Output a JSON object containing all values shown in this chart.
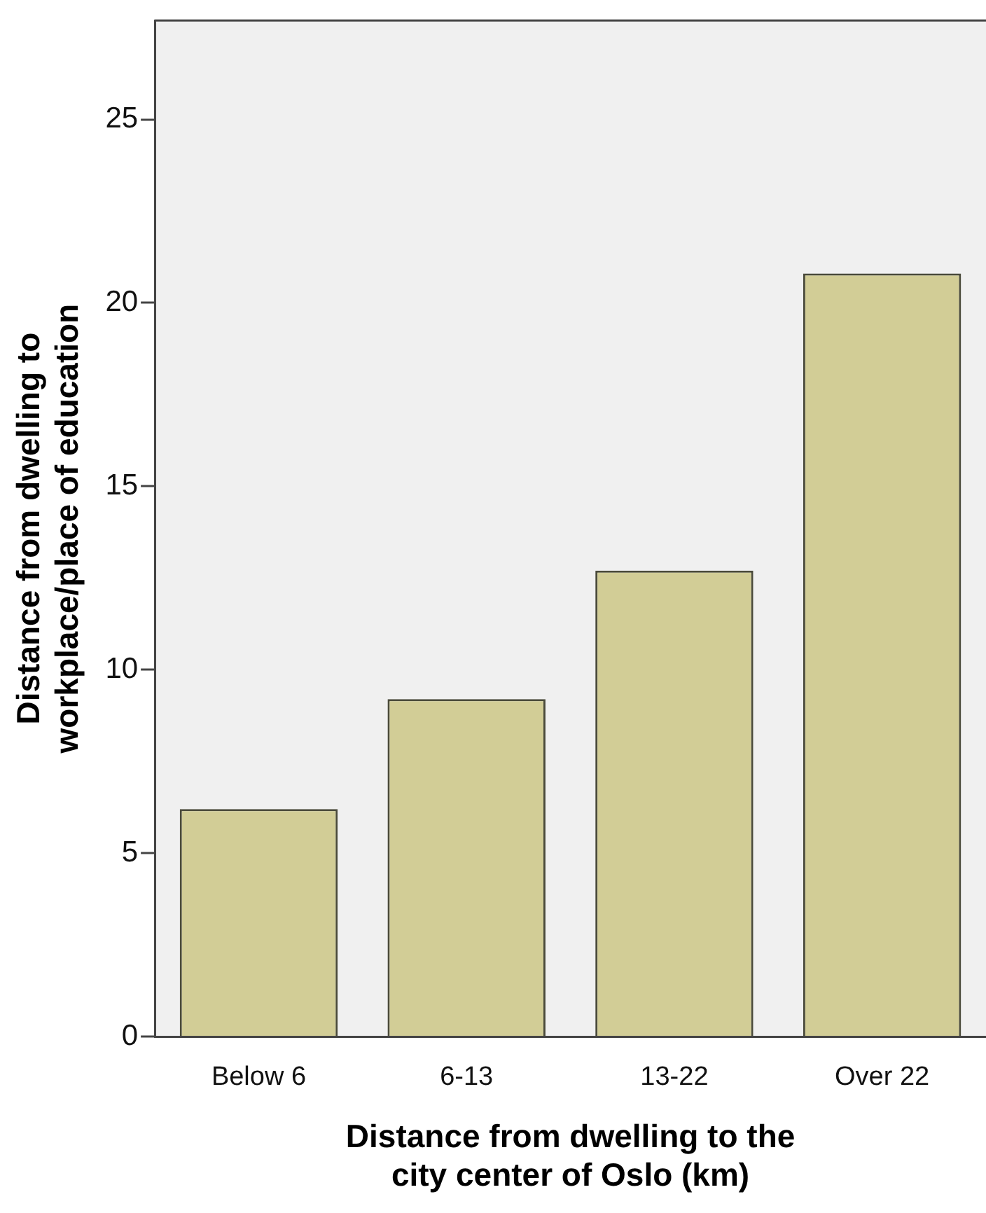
{
  "chart_data": {
    "type": "bar",
    "xlabel": [
      "Distance from dwelling to the",
      "city center of Oslo (km)"
    ],
    "ylabel": [
      "Distance from dwelling to",
      "workplace/place of education"
    ],
    "categories": [
      "Below 6",
      "6-13",
      "13-22",
      "Over 22"
    ],
    "values": [
      6.2,
      9.2,
      12.7,
      20.8
    ],
    "color": "#d2cd96",
    "ylim": [
      0,
      27.7
    ],
    "yticks": [
      0,
      5,
      10,
      15,
      20,
      25
    ],
    "grid": false,
    "legend": false
  }
}
